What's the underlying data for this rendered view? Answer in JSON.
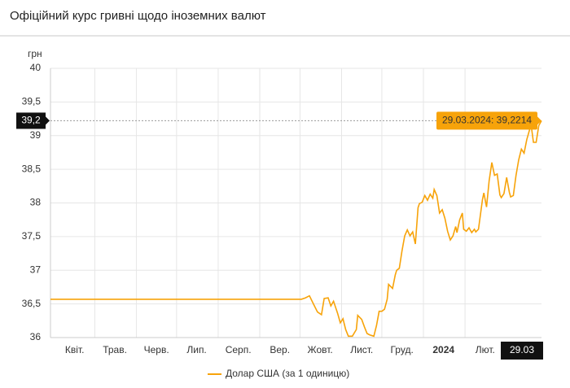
{
  "header": {
    "title": "Офіційний курс гривні щодо іноземних валют"
  },
  "chart_data": {
    "type": "line",
    "y_unit": "грн",
    "x": [
      "2023-03-29",
      "2023-10-02",
      "2023-10-05",
      "2023-10-08",
      "2023-10-11",
      "2023-10-14",
      "2023-10-17",
      "2023-10-19",
      "2023-10-22",
      "2023-10-24",
      "2023-10-26",
      "2023-10-29",
      "2023-10-31",
      "2023-11-02",
      "2023-11-04",
      "2023-11-06",
      "2023-11-09",
      "2023-11-12",
      "2023-11-13",
      "2023-11-16",
      "2023-11-18",
      "2023-11-20",
      "2023-11-22",
      "2023-11-25",
      "2023-11-27",
      "2023-11-29",
      "2023-12-01",
      "2023-12-03",
      "2023-12-05",
      "2023-12-06",
      "2023-12-09",
      "2023-12-11",
      "2023-12-12",
      "2023-12-14",
      "2023-12-16",
      "2023-12-18",
      "2023-12-20",
      "2023-12-22",
      "2023-12-24",
      "2023-12-26",
      "2023-12-28",
      "2023-12-29",
      "2023-12-31",
      "2024-01-02",
      "2024-01-04",
      "2024-01-06",
      "2024-01-08",
      "2024-01-09",
      "2024-01-11",
      "2024-01-13",
      "2024-01-15",
      "2024-01-17",
      "2024-01-19",
      "2024-01-21",
      "2024-01-23",
      "2024-01-25",
      "2024-01-26",
      "2024-01-28",
      "2024-01-30",
      "2024-01-31",
      "2024-02-02",
      "2024-02-04",
      "2024-02-06",
      "2024-02-08",
      "2024-02-09",
      "2024-02-11",
      "2024-02-14",
      "2024-02-15",
      "2024-02-17",
      "2024-02-19",
      "2024-02-21",
      "2024-02-23",
      "2024-02-25",
      "2024-02-27",
      "2024-02-28",
      "2024-03-01",
      "2024-03-03",
      "2024-03-05",
      "2024-03-06",
      "2024-03-08",
      "2024-03-10",
      "2024-03-12",
      "2024-03-14",
      "2024-03-16",
      "2024-03-18",
      "2024-03-20",
      "2024-03-21",
      "2024-03-23",
      "2024-03-25",
      "2024-03-27",
      "2024-03-29"
    ],
    "series": [
      {
        "name": "Долар США (за 1 одиницю)",
        "color": "#f7a30a",
        "values": [
          36.5686,
          36.5686,
          36.59,
          36.62,
          36.5,
          36.38,
          36.34,
          36.58,
          36.59,
          36.47,
          36.54,
          36.36,
          36.22,
          36.28,
          36.12,
          36.02,
          36.02,
          36.12,
          36.33,
          36.27,
          36.16,
          36.06,
          36.04,
          36.02,
          36.18,
          36.39,
          36.39,
          36.42,
          36.57,
          36.79,
          36.73,
          36.93,
          37.0,
          37.03,
          37.29,
          37.51,
          37.6,
          37.51,
          37.57,
          37.39,
          37.93,
          37.99,
          38.01,
          38.11,
          38.04,
          38.13,
          38.07,
          38.2,
          38.11,
          37.85,
          37.9,
          37.77,
          37.58,
          37.45,
          37.51,
          37.65,
          37.56,
          37.75,
          37.85,
          37.61,
          37.58,
          37.63,
          37.56,
          37.61,
          37.57,
          37.61,
          38.05,
          38.15,
          37.94,
          38.33,
          38.6,
          38.41,
          38.43,
          38.12,
          38.08,
          38.14,
          38.38,
          38.16,
          38.09,
          38.11,
          38.41,
          38.64,
          38.8,
          38.74,
          38.94,
          39.08,
          39.2,
          38.9,
          38.9,
          39.15,
          39.2214
        ]
      }
    ],
    "xlim": [
      "2023-03-29",
      "2024-03-29"
    ],
    "xticks": [
      {
        "value": "2023-04-01",
        "label": "Квіт."
      },
      {
        "value": "2023-05-01",
        "label": "Трав."
      },
      {
        "value": "2023-06-01",
        "label": "Черв."
      },
      {
        "value": "2023-07-01",
        "label": "Лип."
      },
      {
        "value": "2023-08-01",
        "label": "Серп."
      },
      {
        "value": "2023-09-01",
        "label": "Вер."
      },
      {
        "value": "2023-10-01",
        "label": "Жовт."
      },
      {
        "value": "2023-11-01",
        "label": "Лист."
      },
      {
        "value": "2023-12-01",
        "label": "Груд."
      },
      {
        "value": "2024-01-01",
        "label": "2024"
      },
      {
        "value": "2024-02-01",
        "label": "Лют."
      }
    ],
    "ylim": [
      36,
      40
    ],
    "yticks": [
      36,
      {
        "value": 36.5,
        "label": "36,5"
      },
      37,
      {
        "value": 37.5,
        "label": "37,5"
      },
      38,
      {
        "value": 38.5,
        "label": "38,5"
      },
      39,
      {
        "value": 39.5,
        "label": "39,5"
      },
      40
    ],
    "grid": true,
    "tooltip": {
      "text": "29.03.2024: 39,2214",
      "y_label": "39,2",
      "x_label": "29.03"
    }
  }
}
